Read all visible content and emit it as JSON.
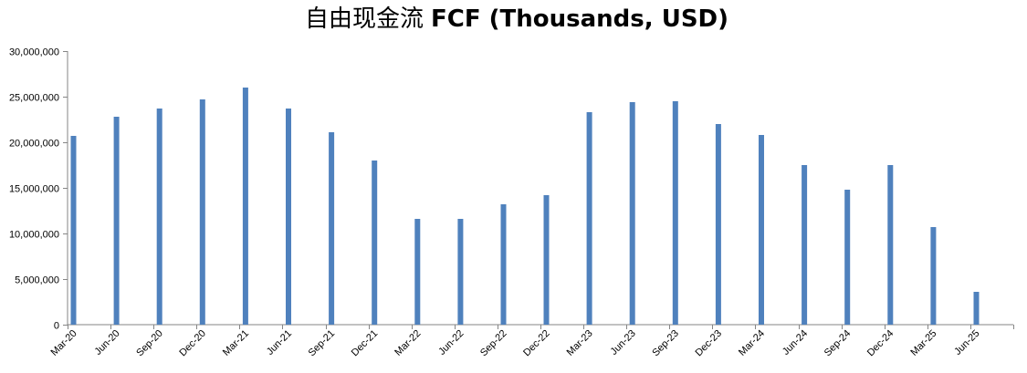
{
  "chart_data": {
    "type": "bar",
    "title_cn": "自由现金流",
    "title_en": "FCF (Thousands, USD)",
    "xlabel": "",
    "ylabel": "",
    "ylim": [
      0,
      30000000
    ],
    "yticks": [
      0,
      5000000,
      10000000,
      15000000,
      20000000,
      25000000,
      30000000
    ],
    "ytick_labels": [
      "0",
      "5,000,000",
      "10,000,000",
      "15,000,000",
      "20,000,000",
      "25,000,000",
      "30,000,000"
    ],
    "grid": false,
    "legend": "none",
    "bar_color": "#4F81BD",
    "categories": [
      "Mar-20",
      "Jun-20",
      "Sep-20",
      "Dec-20",
      "Mar-21",
      "Jun-21",
      "Sep-21",
      "Dec-21",
      "Mar-22",
      "Jun-22",
      "Sep-22",
      "Dec-22",
      "Mar-23",
      "Jun-23",
      "Sep-23",
      "Dec-23",
      "Mar-24",
      "Jun-24",
      "Sep-24",
      "Dec-24",
      "Mar-25",
      "Jun-25"
    ],
    "values": [
      20700000,
      22800000,
      23700000,
      24700000,
      26000000,
      23700000,
      21100000,
      18000000,
      11600000,
      11600000,
      13200000,
      14200000,
      23300000,
      24400000,
      24500000,
      22000000,
      20800000,
      17500000,
      14800000,
      17500000,
      10700000,
      3600000
    ]
  }
}
